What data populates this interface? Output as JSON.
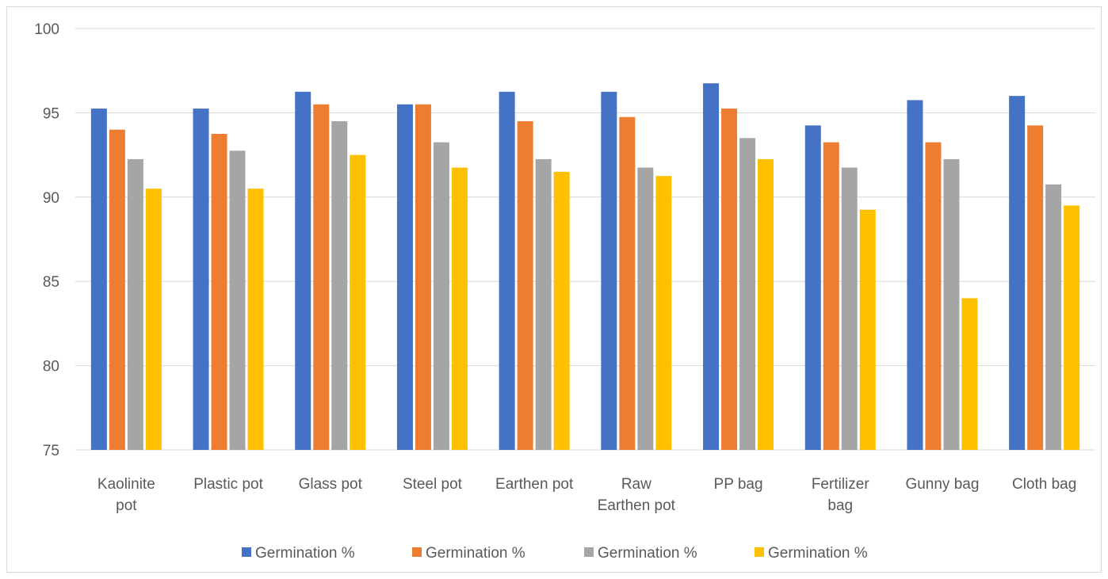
{
  "chart_data": {
    "type": "bar",
    "categories": [
      [
        "Kaolinite",
        "pot"
      ],
      [
        "Plastic pot"
      ],
      [
        "Glass pot"
      ],
      [
        "Steel pot"
      ],
      [
        "Earthen pot"
      ],
      [
        "Raw",
        "Earthen pot"
      ],
      [
        "PP bag"
      ],
      [
        "Fertilizer",
        "bag"
      ],
      [
        "Gunny bag"
      ],
      [
        "Cloth bag"
      ]
    ],
    "series": [
      {
        "name": "Germination %",
        "color": "#4472C4",
        "values": [
          95.25,
          95.25,
          96.25,
          95.5,
          96.25,
          96.25,
          96.75,
          94.25,
          95.75,
          96.0
        ]
      },
      {
        "name": "Germination %",
        "color": "#ED7D31",
        "values": [
          94.0,
          93.75,
          95.5,
          95.5,
          94.5,
          94.75,
          95.25,
          93.25,
          93.25,
          94.25
        ]
      },
      {
        "name": "Germination %",
        "color": "#A5A5A5",
        "values": [
          92.25,
          92.75,
          94.5,
          93.25,
          92.25,
          91.75,
          93.5,
          91.75,
          92.25,
          90.75
        ]
      },
      {
        "name": "Germination %",
        "color": "#FFC000",
        "values": [
          90.5,
          90.5,
          92.5,
          91.75,
          91.5,
          91.25,
          92.25,
          89.25,
          84.0,
          89.5
        ]
      }
    ],
    "ylim": [
      75,
      100
    ],
    "yticks": [
      75,
      80,
      85,
      90,
      95,
      100
    ],
    "grid": true,
    "legend_position": "bottom"
  }
}
